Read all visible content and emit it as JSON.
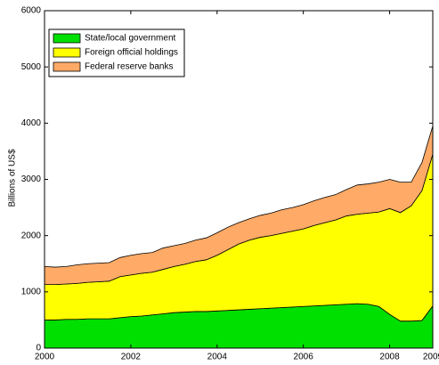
{
  "chart_data": {
    "type": "stacked_area",
    "ylabel": "Billions of US$",
    "x": [
      2000,
      2000.25,
      2000.5,
      2000.75,
      2001,
      2001.25,
      2001.5,
      2001.75,
      2002,
      2002.25,
      2002.5,
      2002.75,
      2003,
      2003.25,
      2003.5,
      2003.75,
      2004,
      2004.25,
      2004.5,
      2004.75,
      2005,
      2005.25,
      2005.5,
      2005.75,
      2006,
      2006.25,
      2006.5,
      2006.75,
      2007,
      2007.25,
      2007.5,
      2007.75,
      2008,
      2008.25,
      2008.5,
      2008.75,
      2009
    ],
    "series": [
      {
        "name": "State/local government",
        "color": "#00e000",
        "values": [
          500,
          500,
          510,
          510,
          520,
          520,
          520,
          540,
          560,
          570,
          590,
          610,
          630,
          640,
          650,
          650,
          660,
          670,
          680,
          690,
          700,
          710,
          720,
          730,
          740,
          750,
          760,
          770,
          780,
          790,
          780,
          740,
          600,
          480,
          480,
          490,
          750
        ]
      },
      {
        "name": "Foreign official holdings",
        "color": "#ffff00",
        "values": [
          630,
          630,
          630,
          640,
          650,
          660,
          670,
          730,
          740,
          760,
          760,
          790,
          820,
          850,
          890,
          920,
          990,
          1080,
          1170,
          1230,
          1270,
          1290,
          1320,
          1350,
          1380,
          1430,
          1470,
          1510,
          1570,
          1590,
          1620,
          1680,
          1880,
          1930,
          2050,
          2310,
          2700
        ]
      },
      {
        "name": "Federal reserve banks",
        "color": "#ffaa66",
        "values": [
          320,
          310,
          310,
          330,
          330,
          330,
          330,
          340,
          350,
          350,
          350,
          380,
          370,
          370,
          380,
          390,
          400,
          400,
          380,
          380,
          390,
          400,
          420,
          420,
          430,
          440,
          450,
          450,
          470,
          520,
          520,
          530,
          520,
          540,
          420,
          500,
          500
        ]
      }
    ],
    "xlim": [
      2000,
      2009
    ],
    "ylim": [
      0,
      6000
    ],
    "xticks": [
      2000,
      2002,
      2004,
      2006,
      2008,
      2009
    ],
    "yticks": [
      0,
      1000,
      2000,
      3000,
      4000,
      5000,
      6000
    ],
    "grid": false,
    "legend": "upper-left"
  }
}
